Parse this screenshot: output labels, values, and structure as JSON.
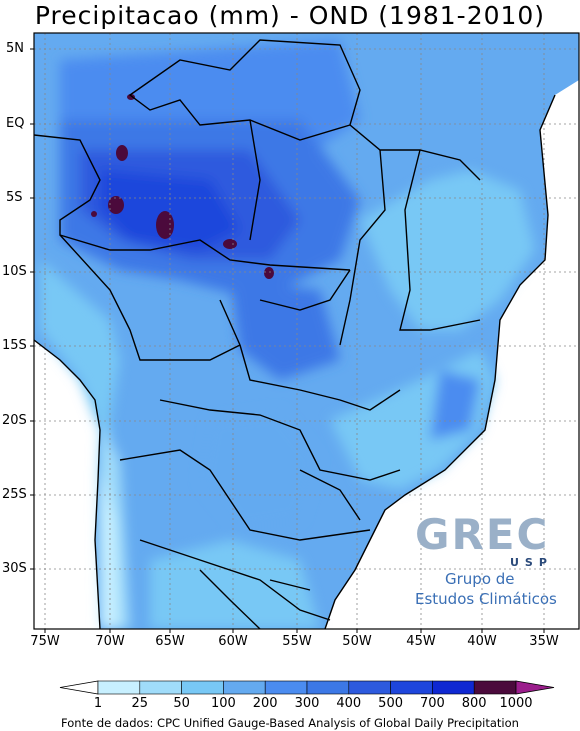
{
  "title": "Precipitacao (mm) - OND (1981-2010)",
  "y_ticks": [
    "5N",
    "EQ",
    "5S",
    "10S",
    "15S",
    "20S",
    "25S",
    "30S"
  ],
  "x_ticks": [
    "75W",
    "70W",
    "65W",
    "60W",
    "55W",
    "50W",
    "45W",
    "40W",
    "35W"
  ],
  "colorbar": {
    "labels": [
      "1",
      "25",
      "50",
      "100",
      "200",
      "300",
      "400",
      "500",
      "700",
      "800",
      "1000"
    ],
    "colors": [
      "#ffffff",
      "#c8f0ff",
      "#a0dcfa",
      "#78c8f5",
      "#64aaf0",
      "#4b8cf0",
      "#3c78e6",
      "#2d5ade",
      "#1e46dc",
      "#0f28d2",
      "#4b0a3c",
      "#9b1e8c"
    ]
  },
  "logo": {
    "big": "GREC",
    "usp": "USP",
    "line1": "Grupo de",
    "line2": "Estudos Climáticos"
  },
  "source": "Fonte de dados: CPC Unified Gauge-Based Analysis of Global Daily Precipitation"
}
